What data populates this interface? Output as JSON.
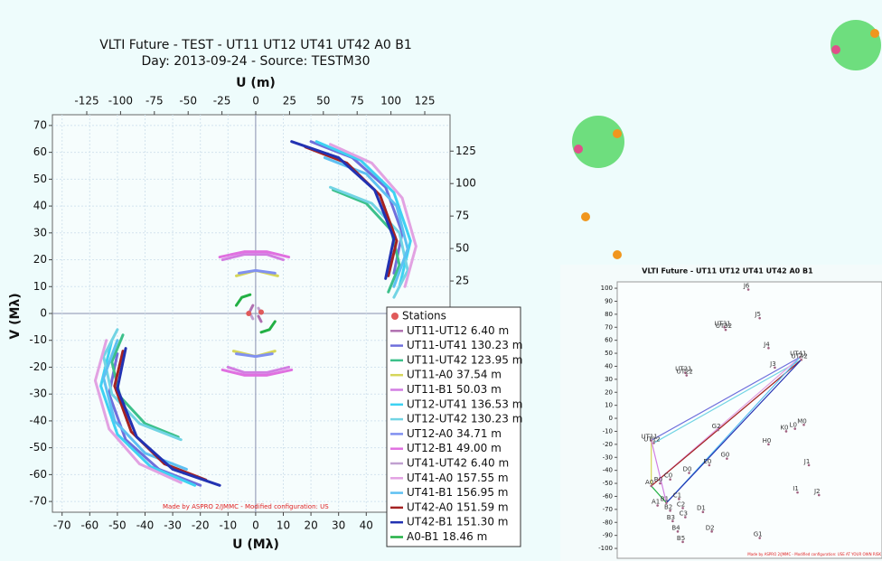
{
  "chart_data": [
    {
      "type": "uv",
      "title": "VLTI Future - TEST - UT11 UT12 UT41 UT42 A0 B1",
      "subtitle": "Day: 2013-09-24 - Source: TESTM30",
      "xlabel": "U (Mλ)",
      "x2label": "U (m)",
      "ylabel": "V (Mλ)",
      "xlim": [
        -73.5,
        70.3
      ],
      "xticks": [
        -70,
        -60,
        -50,
        -40,
        -30,
        -20,
        -10,
        0,
        10,
        20,
        30,
        40
      ],
      "x2lim": [
        -150.4,
        143.7
      ],
      "x2ticks": [
        -125,
        -100,
        -75,
        -50,
        -25,
        0,
        25,
        50,
        75,
        100,
        125
      ],
      "ylim": [
        -74,
        74
      ],
      "yticks": [
        -70,
        -60,
        -50,
        -40,
        -30,
        -20,
        -10,
        0,
        10,
        20,
        30,
        40,
        50,
        60,
        70
      ],
      "y2lim": [
        -153,
        153
      ],
      "y2ticks": [
        25,
        50,
        75,
        100,
        125
      ],
      "grid": true,
      "footer": "Made by ASPRO 2/JMMC - Modified configuration: US",
      "stations": {
        "name": "Stations",
        "color": "#e05a5a",
        "x": [
          -2.5,
          2
        ],
        "values": [
          0,
          0.5
        ]
      },
      "series": [
        {
          "name": "UT11-UT12 6.40 m",
          "color": "#b070b0",
          "x": [
            -2,
            -1,
            null,
            1,
            2
          ],
          "values": [
            1,
            3,
            null,
            -1,
            -3
          ]
        },
        {
          "name": "UT11-UT41 130.23 m",
          "color": "#6f6fdc",
          "x": [
            20,
            35,
            47,
            53,
            50,
            null,
            -20,
            -35,
            -47,
            -53,
            -50
          ],
          "values": [
            64,
            58,
            47,
            30,
            15,
            null,
            -64,
            -58,
            -47,
            -30,
            -15
          ]
        },
        {
          "name": "UT11-UT42 123.95 m",
          "color": "#3cc08a",
          "x": [
            28,
            40,
            49,
            52,
            48,
            null,
            -28,
            -40,
            -49,
            -52,
            -48
          ],
          "values": [
            46,
            41,
            31,
            18,
            8,
            null,
            -46,
            -41,
            -31,
            -18,
            -8
          ]
        },
        {
          "name": "UT11-A0 37.54 m",
          "color": "#d6d65a",
          "x": [
            -7,
            0,
            8,
            null,
            7,
            0,
            -8
          ],
          "values": [
            14,
            16,
            14,
            null,
            -14,
            -16,
            -14
          ]
        },
        {
          "name": "UT11-B1 50.03 m",
          "color": "#d27ee2",
          "x": [
            -12,
            -4,
            4,
            10,
            null,
            12,
            4,
            -4,
            -10
          ],
          "values": [
            20,
            22,
            22,
            20,
            null,
            -20,
            -22,
            -22,
            -20
          ]
        },
        {
          "name": "UT12-UT41 136.53 m",
          "color": "#3ed2f2",
          "x": [
            22,
            38,
            50,
            56,
            52,
            null,
            -22,
            -38,
            -50,
            -56,
            -52
          ],
          "values": [
            64,
            57,
            45,
            27,
            10,
            null,
            -64,
            -57,
            -45,
            -27,
            -10
          ]
        },
        {
          "name": "UT12-UT42 130.23 m",
          "color": "#72d4e4",
          "x": [
            27,
            42,
            52,
            55,
            50,
            null,
            -27,
            -42,
            -52,
            -55,
            -50
          ],
          "values": [
            47,
            41,
            30,
            16,
            6,
            null,
            -47,
            -41,
            -30,
            -16,
            -6
          ]
        },
        {
          "name": "UT12-A0 34.71 m",
          "color": "#8090f0",
          "x": [
            -6,
            0,
            7,
            null,
            6,
            0,
            -7
          ],
          "values": [
            15,
            16,
            15,
            null,
            -15,
            -16,
            -15
          ]
        },
        {
          "name": "UT12-B1 49.00 m",
          "color": "#e070e0",
          "x": [
            -13,
            -4,
            4,
            12,
            null,
            13,
            4,
            -4,
            -12
          ],
          "values": [
            21,
            23,
            23,
            21,
            null,
            -21,
            -23,
            -23,
            -21
          ]
        },
        {
          "name": "UT41-UT42 6.40 m",
          "color": "#c0a0d0",
          "x": [
            1,
            2,
            null,
            -1,
            -2
          ],
          "values": [
            2,
            0,
            null,
            -2,
            0
          ]
        },
        {
          "name": "UT41-A0 157.55 m",
          "color": "#e2a2e2",
          "x": [
            27,
            42,
            53,
            58,
            54,
            null,
            -27,
            -42,
            -53,
            -58,
            -54
          ],
          "values": [
            63,
            56,
            43,
            25,
            10,
            null,
            -63,
            -56,
            -43,
            -25,
            -10
          ]
        },
        {
          "name": "UT41-B1 156.95 m",
          "color": "#5ec0f2",
          "x": [
            25,
            40,
            51,
            55,
            50,
            null,
            -25,
            -40,
            -51,
            -55,
            -50
          ],
          "values": [
            58,
            52,
            40,
            24,
            10,
            null,
            -58,
            -52,
            -40,
            -24,
            -10
          ]
        },
        {
          "name": "UT42-A0 151.59 m",
          "color": "#a42222",
          "x": [
            18,
            33,
            45,
            51,
            48,
            null,
            -18,
            -33,
            -45,
            -51,
            -48
          ],
          "values": [
            62,
            56,
            44,
            27,
            14,
            null,
            -62,
            -56,
            -44,
            -27,
            -14
          ]
        },
        {
          "name": "UT42-B1 151.30 m",
          "color": "#2232b2",
          "x": [
            13,
            30,
            43,
            50,
            47,
            null,
            -13,
            -30,
            -43,
            -50,
            -47
          ],
          "values": [
            64,
            58,
            46,
            28,
            13,
            null,
            -64,
            -58,
            -46,
            -28,
            -13
          ]
        },
        {
          "name": "A0-B1 18.46 m",
          "color": "#22b044",
          "x": [
            -7,
            -5,
            -2,
            null,
            7,
            5,
            2
          ],
          "values": [
            3,
            6,
            7,
            null,
            -3,
            -6,
            -7
          ]
        }
      ]
    },
    {
      "type": "scatter",
      "title": "VLTI Future - UT11 UT12 UT41 UT42 A0 B1",
      "footer": "Made by ASPRO 2/JMMC - Modified configuration: USE AT YOUR OWN RISK",
      "xlim": [
        -80,
        130
      ],
      "ylim": [
        -107.6,
        104.9
      ],
      "yticks": [
        -100,
        -90,
        -80,
        -70,
        -60,
        -50,
        -40,
        -30,
        -20,
        -10,
        0,
        10,
        20,
        30,
        40,
        50,
        60,
        70,
        80,
        90,
        100
      ],
      "color": "#a06080",
      "labels": [
        "J6",
        "J5",
        "UT31",
        "UT32",
        "J4",
        "UT41",
        "UT42",
        "J3",
        "UT21",
        "UT22",
        "UT11",
        "UT12",
        "G2",
        "K0",
        "L0",
        "M0",
        "H0",
        "G0",
        "E0",
        "D0",
        "C0",
        "B0",
        "A0",
        "J1",
        "B1",
        "A1",
        "B2",
        "C1",
        "C2",
        "C3",
        "B3",
        "D1",
        "B4",
        "D2",
        "B5",
        "G1",
        "I1",
        "J2"
      ],
      "x": [
        24,
        33,
        5,
        6,
        40,
        65,
        66,
        45,
        -26,
        -25,
        -53,
        -51,
        0,
        54,
        61,
        68,
        40,
        7,
        -7,
        -23,
        -38,
        -46,
        -53,
        72,
        -41,
        -48,
        -38,
        -31,
        -28,
        -26,
        -36,
        -12,
        -32,
        -5,
        -28,
        33,
        63,
        80
      ],
      "values": [
        99,
        77,
        70,
        68,
        54,
        47,
        45,
        39,
        35,
        33,
        -17,
        -19,
        -9,
        -10,
        -8,
        -5,
        -20,
        -31,
        -36,
        -42,
        -47,
        -50,
        -52,
        -36,
        -65,
        -67,
        -71,
        -62,
        -69,
        -76,
        -79,
        -72,
        -87,
        -87,
        -95,
        -92,
        -57,
        -59
      ]
    }
  ]
}
